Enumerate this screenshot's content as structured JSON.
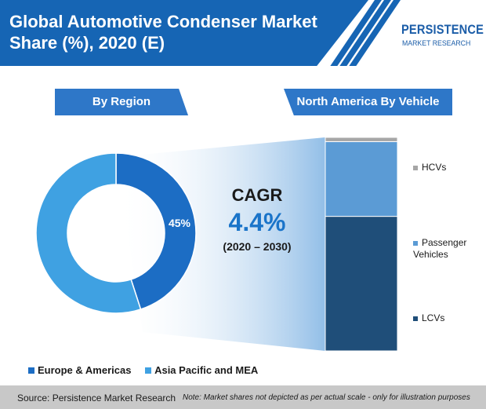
{
  "header": {
    "title_line1": "Global Automotive Condenser Market",
    "title_line2": "Share (%), 2020 (E)"
  },
  "logo": {
    "main": "PERSISTENCE",
    "sub": "MARKET RESEARCH"
  },
  "sections": {
    "region_label": "By Region",
    "vehicle_label": "North America By Vehicle"
  },
  "cagr": {
    "title": "CAGR",
    "value": "4.4%",
    "range": "(2020 – 2030)"
  },
  "colors": {
    "brand": "#1665b4",
    "europe_americas": "#1c6dc4",
    "asia_pacific_mea": "#3fa1e2",
    "lcvs": "#1f4e79",
    "passenger": "#5b9bd5",
    "hcvs": "#a6a6a6"
  },
  "chart_data": [
    {
      "type": "pie",
      "variant": "donut",
      "slices": [
        {
          "label": "Europe & Americas",
          "value": 45,
          "data_label": "45%"
        },
        {
          "label": "Asia Pacific and MEA",
          "value": 55
        }
      ],
      "legend": [
        "Europe & Americas",
        "Asia Pacific and MEA"
      ],
      "legend_position": "bottom"
    },
    {
      "type": "bar",
      "variant": "stacked-100",
      "categories": [
        "North America"
      ],
      "series": [
        {
          "name": "LCVs",
          "values": [
            63
          ]
        },
        {
          "name": "Passenger Vehicles",
          "values": [
            35
          ]
        },
        {
          "name": "HCVs",
          "values": [
            2
          ]
        }
      ],
      "legend_position": "right"
    }
  ],
  "footer": {
    "source": "Source: Persistence Market Research",
    "note": "Note: Market shares not depicted as per actual scale - only for illustration purposes"
  }
}
